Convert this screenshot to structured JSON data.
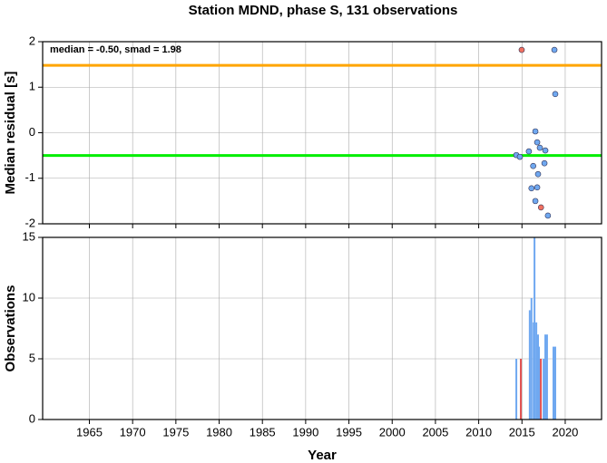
{
  "chart_data": [
    {
      "type": "scatter",
      "title": "Station MDND, phase S, 131 observations",
      "ylabel": "Median residual [s]",
      "annotation": "median = -0.50, smad = 1.98",
      "xlim": [
        1959.6,
        2024.2
      ],
      "xticks": [
        1965,
        1970,
        1975,
        1980,
        1985,
        1990,
        1995,
        2000,
        2005,
        2010,
        2015,
        2020
      ],
      "ylim": [
        -2,
        2
      ],
      "yticks": [
        -2,
        -1,
        0,
        1,
        2
      ],
      "grid": true,
      "lines": [
        {
          "value": 1.48,
          "color": "#ffa500"
        },
        {
          "value": -0.5,
          "color": "#00ee00"
        }
      ],
      "series": [
        {
          "color": "#6fa8f0",
          "x": [
            2018.75,
            2018.85,
            2016.55,
            2016.76,
            2017.07,
            2015.8,
            2017.7,
            2014.35,
            2014.76,
            2017.6,
            2016.3,
            2016.86,
            2016.76,
            2016.1,
            2016.55,
            2018.0
          ],
          "values": [
            1.82,
            0.85,
            0.03,
            -0.21,
            -0.33,
            -0.41,
            -0.39,
            -0.49,
            -0.53,
            -0.67,
            -0.73,
            -0.91,
            -1.2,
            -1.22,
            -1.5,
            -1.82
          ]
        },
        {
          "color": "#f07060",
          "x": [
            2014.97,
            2017.2
          ],
          "values": [
            1.82,
            -1.64
          ]
        }
      ]
    },
    {
      "type": "bar",
      "xlabel": "Year",
      "ylabel": "Observations",
      "xlim": [
        1959.6,
        2024.2
      ],
      "xticks": [
        1965,
        1970,
        1975,
        1980,
        1985,
        1990,
        1995,
        2000,
        2005,
        2010,
        2015,
        2020
      ],
      "ylim": [
        0,
        15
      ],
      "yticks": [
        0,
        5,
        10,
        15
      ],
      "grid": true,
      "series": [
        {
          "color": "#6fa8f0",
          "x": [
            2014.35,
            2015.9,
            2016.1,
            2016.35,
            2016.45,
            2016.66,
            2016.86,
            2016.97,
            2017.5,
            2017.7,
            2017.9,
            2018.64,
            2018.85
          ],
          "values": [
            5,
            9,
            10,
            8,
            15,
            8,
            7,
            6,
            5,
            7,
            7,
            6,
            6
          ]
        },
        {
          "color": "#e05050",
          "x": [
            2014.87,
            2017.18
          ],
          "values": [
            5,
            5
          ]
        }
      ]
    }
  ]
}
